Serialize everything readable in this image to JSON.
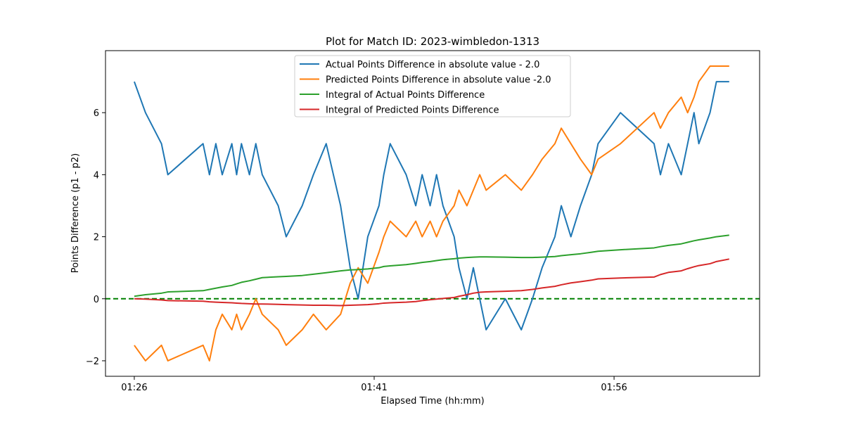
{
  "chart_data": {
    "type": "line",
    "title": "Plot for Match ID: 2023-wimbledon-1313",
    "xlabel": "Elapsed Time (hh:mm)",
    "ylabel": "Points Difference (p1 - p2)",
    "x_ticks": [
      {
        "label": "01:26",
        "value": 86
      },
      {
        "label": "01:41",
        "value": 101
      },
      {
        "label": "01:56",
        "value": 116
      }
    ],
    "y_ticks": [
      -2,
      0,
      2,
      4,
      6
    ],
    "xlim": [
      84.2,
      125.1
    ],
    "ylim": [
      -2.5,
      8.0
    ],
    "grid": false,
    "legend_position": "top-center",
    "reference_line": {
      "y": 0,
      "color": "#008000",
      "style": "dashed"
    },
    "series": [
      {
        "name": "Actual Points Difference in absolute value - 2.0",
        "color": "#1f77b4",
        "x": [
          86.0,
          86.7,
          87.7,
          88.1,
          90.3,
          90.7,
          91.1,
          91.5,
          92.1,
          92.4,
          92.7,
          93.2,
          93.6,
          94.0,
          95.0,
          95.5,
          96.5,
          97.2,
          98.0,
          98.9,
          99.5,
          100.0,
          100.6,
          101.3,
          101.6,
          102.0,
          103.0,
          103.6,
          104.0,
          104.5,
          104.9,
          105.3,
          106.0,
          106.3,
          106.8,
          107.2,
          107.6,
          108.0,
          109.2,
          110.2,
          110.9,
          111.5,
          112.3,
          112.7,
          113.3,
          113.9,
          114.6,
          115.0,
          116.4,
          118.5,
          118.9,
          119.4,
          120.2,
          120.6,
          121.0,
          121.3,
          122.0,
          122.4,
          123.2
        ],
        "y": [
          7,
          6,
          5,
          4,
          5,
          4,
          5,
          4,
          5,
          4,
          5,
          4,
          5,
          4,
          3,
          2,
          3,
          4,
          5,
          3,
          1,
          0,
          2,
          3,
          4,
          5,
          4,
          3,
          4,
          3,
          4,
          3,
          2,
          1,
          0,
          1,
          0,
          -1,
          0,
          -1,
          0,
          1,
          2,
          3,
          2,
          3,
          4,
          5,
          6,
          5,
          4,
          5,
          4,
          5,
          6,
          5,
          6,
          7,
          7
        ]
      },
      {
        "name": "Predicted Points Difference in absolute value -2.0",
        "color": "#ff7f0e",
        "x": [
          86.0,
          86.7,
          87.7,
          88.1,
          90.3,
          90.7,
          91.1,
          91.5,
          92.1,
          92.4,
          92.7,
          93.2,
          93.6,
          94.0,
          95.0,
          95.5,
          96.5,
          97.2,
          98.0,
          98.9,
          99.5,
          100.0,
          100.6,
          101.3,
          101.6,
          102.0,
          103.0,
          103.6,
          104.0,
          104.5,
          104.9,
          105.3,
          106.0,
          106.3,
          106.8,
          107.2,
          107.6,
          108.0,
          109.2,
          110.2,
          110.9,
          111.5,
          112.3,
          112.7,
          113.3,
          113.9,
          114.6,
          115.0,
          116.4,
          118.5,
          118.9,
          119.4,
          120.2,
          120.6,
          121.0,
          121.3,
          122.0,
          122.4,
          123.2
        ],
        "y": [
          -1.5,
          -2,
          -1.5,
          -2,
          -1.5,
          -2,
          -1,
          -0.5,
          -1,
          -0.5,
          -1,
          -0.5,
          0,
          -0.5,
          -1,
          -1.5,
          -1,
          -0.5,
          -1,
          -0.5,
          0.5,
          1,
          0.5,
          1.5,
          2,
          2.5,
          2,
          2.5,
          2,
          2.5,
          2,
          2.5,
          3,
          3.5,
          3,
          3.5,
          4,
          3.5,
          4,
          3.5,
          4,
          4.5,
          5,
          5.5,
          5,
          4.5,
          4,
          4.5,
          5,
          6,
          5.5,
          6,
          6.5,
          6,
          6.5,
          7,
          7.5,
          7.5,
          7.5
        ]
      },
      {
        "name": "Integral of Actual Points Difference",
        "color": "#2ca02c",
        "x": [
          86.0,
          86.7,
          87.7,
          88.1,
          90.3,
          90.7,
          91.1,
          91.5,
          92.1,
          92.4,
          92.7,
          93.2,
          93.6,
          94.0,
          95.0,
          95.5,
          96.5,
          97.2,
          98.0,
          98.9,
          99.5,
          100.0,
          100.6,
          101.3,
          101.6,
          102.0,
          103.0,
          103.6,
          104.0,
          104.5,
          104.9,
          105.3,
          106.0,
          106.3,
          106.8,
          107.2,
          107.6,
          108.0,
          109.2,
          110.2,
          110.9,
          111.5,
          112.3,
          112.7,
          113.3,
          113.9,
          114.6,
          115.0,
          116.4,
          118.5,
          118.9,
          119.4,
          120.2,
          120.6,
          121.0,
          121.3,
          122.0,
          122.4,
          123.2
        ],
        "y": [
          0.08,
          0.13,
          0.18,
          0.22,
          0.26,
          0.3,
          0.34,
          0.38,
          0.43,
          0.48,
          0.53,
          0.58,
          0.63,
          0.68,
          0.71,
          0.72,
          0.75,
          0.79,
          0.84,
          0.9,
          0.93,
          0.94,
          0.96,
          1.0,
          1.04,
          1.06,
          1.1,
          1.14,
          1.17,
          1.2,
          1.23,
          1.26,
          1.29,
          1.31,
          1.33,
          1.34,
          1.35,
          1.35,
          1.34,
          1.33,
          1.33,
          1.34,
          1.36,
          1.39,
          1.42,
          1.45,
          1.5,
          1.53,
          1.58,
          1.64,
          1.68,
          1.72,
          1.77,
          1.82,
          1.87,
          1.9,
          1.96,
          2.0,
          2.05
        ]
      },
      {
        "name": "Integral of Predicted Points Difference",
        "color": "#d62728",
        "x": [
          86.0,
          86.7,
          87.7,
          88.1,
          90.3,
          90.7,
          91.1,
          91.5,
          92.1,
          92.4,
          92.7,
          93.2,
          93.6,
          94.0,
          95.0,
          95.5,
          96.5,
          97.2,
          98.0,
          98.9,
          99.5,
          100.0,
          100.6,
          101.3,
          101.6,
          102.0,
          103.0,
          103.6,
          104.0,
          104.5,
          104.9,
          105.3,
          106.0,
          106.3,
          106.8,
          107.2,
          107.6,
          108.0,
          109.2,
          110.2,
          110.9,
          111.5,
          112.3,
          112.7,
          113.3,
          113.9,
          114.6,
          115.0,
          116.4,
          118.5,
          118.9,
          119.4,
          120.2,
          120.6,
          121.0,
          121.3,
          122.0,
          122.4,
          123.2
        ],
        "y": [
          0.0,
          -0.01,
          -0.04,
          -0.06,
          -0.08,
          -0.1,
          -0.11,
          -0.12,
          -0.13,
          -0.14,
          -0.15,
          -0.16,
          -0.17,
          -0.17,
          -0.18,
          -0.19,
          -0.2,
          -0.21,
          -0.21,
          -0.22,
          -0.21,
          -0.2,
          -0.19,
          -0.16,
          -0.14,
          -0.13,
          -0.11,
          -0.09,
          -0.06,
          -0.03,
          -0.01,
          0.01,
          0.04,
          0.08,
          0.13,
          0.18,
          0.21,
          0.22,
          0.24,
          0.26,
          0.3,
          0.35,
          0.4,
          0.45,
          0.51,
          0.55,
          0.6,
          0.64,
          0.67,
          0.7,
          0.78,
          0.85,
          0.9,
          0.97,
          1.03,
          1.07,
          1.13,
          1.2,
          1.28
        ]
      }
    ]
  }
}
